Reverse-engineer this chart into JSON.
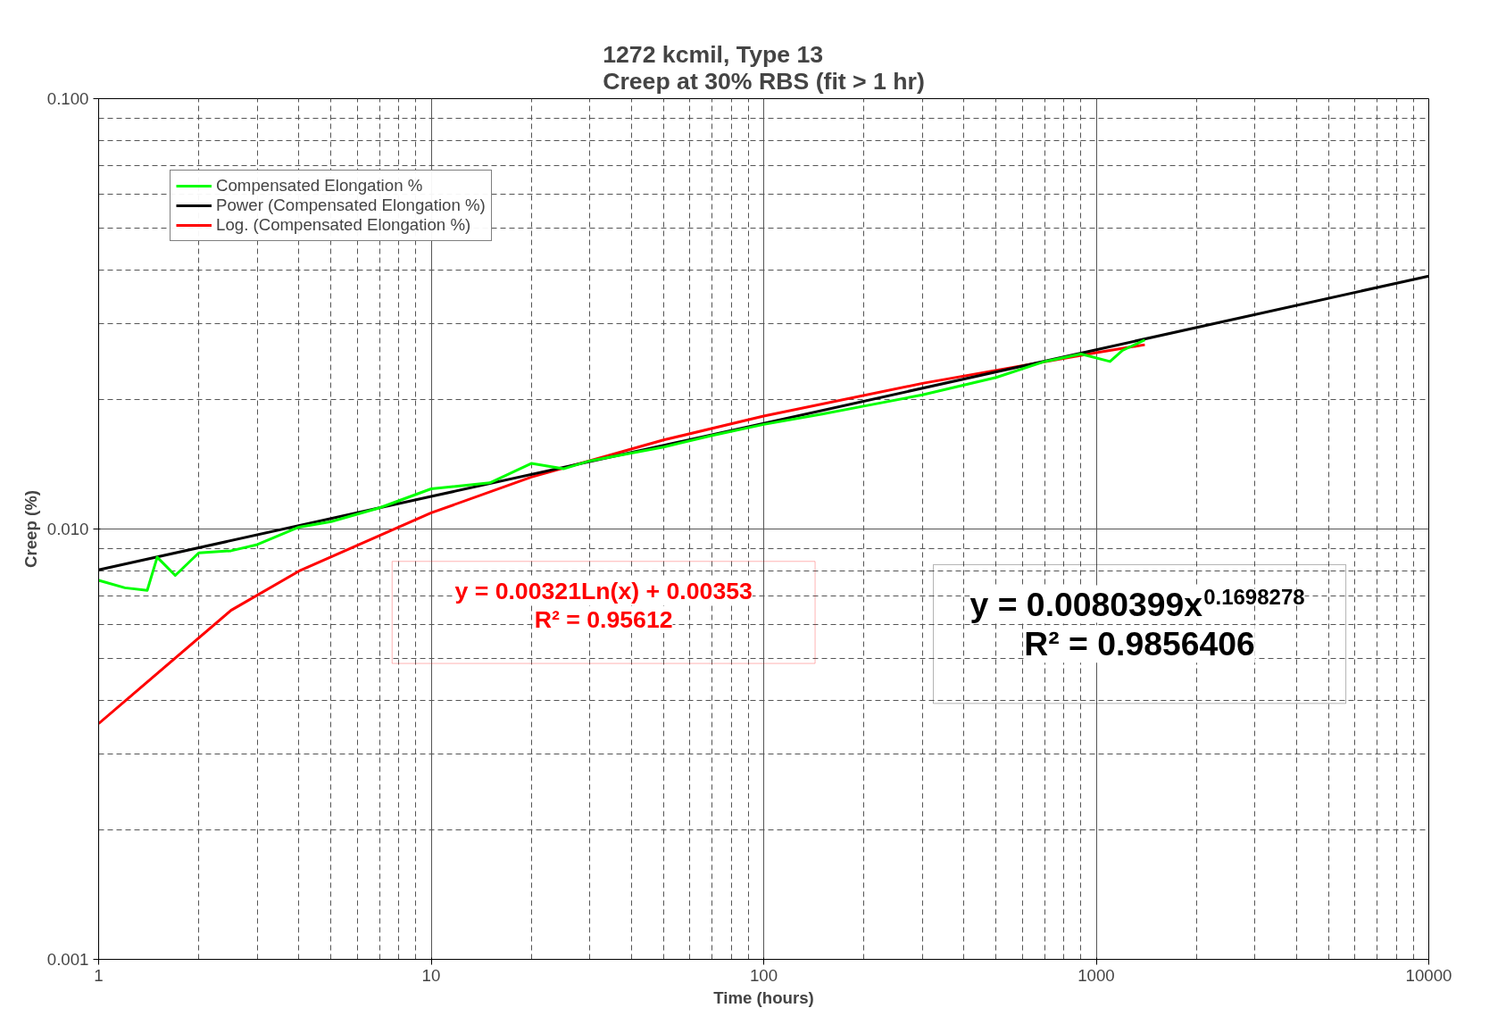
{
  "chart_data": {
    "type": "line",
    "title": "1272 kcmil, Type 13\nCreep at 30% RBS (fit > 1 hr)",
    "xlabel": "Time (hours)",
    "ylabel": "Creep (%)",
    "log": "xy",
    "xlim": [
      1,
      10000
    ],
    "ylim": [
      0.001,
      0.1
    ],
    "xticks": [
      1,
      10,
      100,
      1000,
      10000
    ],
    "yticks": [
      {
        "value": 0.001,
        "label": "0.001"
      },
      {
        "value": 0.01,
        "label": "0.010"
      },
      {
        "value": 0.1,
        "label": "0.100"
      }
    ],
    "grid": true,
    "legend": "top left",
    "marker": "none",
    "line_style": "solid",
    "series": [
      {
        "name": "Compensated Elongation %",
        "color": "#00ff00",
        "x": [
          1,
          1.2,
          1.4,
          1.5,
          1.7,
          2,
          2.5,
          3,
          4,
          5,
          7,
          10,
          15,
          20,
          25,
          30,
          50,
          70,
          100,
          150,
          200,
          300,
          500,
          700,
          900,
          1100,
          1200,
          1400
        ],
        "values": [
          0.0076,
          0.0073,
          0.0072,
          0.0086,
          0.0078,
          0.0088,
          0.0089,
          0.0092,
          0.0101,
          0.0104,
          0.0112,
          0.0124,
          0.0128,
          0.0142,
          0.0138,
          0.0144,
          0.0155,
          0.0165,
          0.0175,
          0.0185,
          0.0193,
          0.0205,
          0.0225,
          0.0245,
          0.0255,
          0.0245,
          0.026,
          0.0275
        ]
      },
      {
        "name": "Power (Compensated Elongation %)",
        "color": "#000000",
        "x": [
          1,
          10,
          100,
          1000,
          10000
        ],
        "values": [
          0.00804,
          0.0119,
          0.0176,
          0.0261,
          0.0387
        ]
      },
      {
        "name": "Log. (Compensated Elongation %)",
        "color": "#ff0000",
        "x": [
          1,
          2.5,
          4,
          10,
          20,
          50,
          100,
          300,
          1000,
          1400
        ],
        "values": [
          0.00353,
          0.00647,
          0.00798,
          0.0109,
          0.0132,
          0.0161,
          0.0183,
          0.0218,
          0.0257,
          0.0268
        ]
      }
    ],
    "annotations": [
      "y = 0.00321Ln(x) + 0.00353\nR² = 0.95612",
      "y = 0.0080399x$^{0.1698278}$\nR² = 0.9856406"
    ]
  }
}
